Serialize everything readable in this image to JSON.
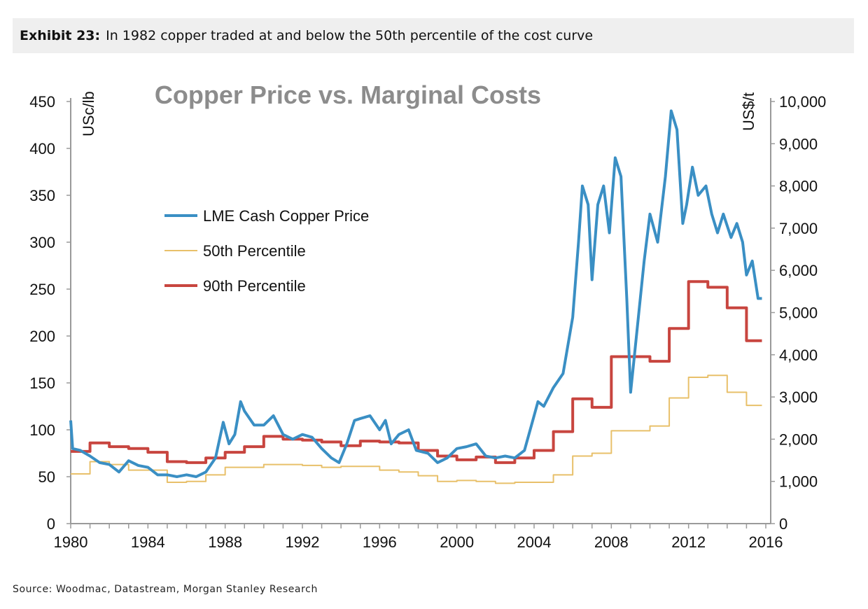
{
  "header": {
    "exhibit_label": "Exhibit 23:",
    "exhibit_title": "In 1982 copper traded at and below the 50th percentile of the cost curve"
  },
  "source": "Source: Woodmac, Datastream, Morgan Stanley Research",
  "chart_data": {
    "type": "line",
    "title": "Copper Price vs. Marginal Costs",
    "ylabel": "USc/lb",
    "y2label": "US$/t",
    "xlim": [
      1980,
      2016
    ],
    "ylim": [
      0,
      450
    ],
    "y2lim": [
      0,
      10000
    ],
    "x_ticks": [
      "1980",
      "1984",
      "1988",
      "1992",
      "1996",
      "2000",
      "2004",
      "2008",
      "2012",
      "2016"
    ],
    "y_ticks": [
      "0",
      "50",
      "100",
      "150",
      "200",
      "250",
      "300",
      "350",
      "400",
      "450"
    ],
    "y2_ticks": [
      "0",
      "1,000",
      "2,000",
      "3,000",
      "4,000",
      "5,000",
      "6,000",
      "7,000",
      "8,000",
      "9,000",
      "10,000"
    ],
    "legend_position": "upper-left",
    "series": [
      {
        "name": "LME Cash Copper Price",
        "color": "#3a8fc4",
        "step": false,
        "x": [
          1980.0,
          1980.1,
          1980.5,
          1981,
          1981.5,
          1982,
          1982.5,
          1983,
          1983.5,
          1984,
          1984.5,
          1985,
          1985.5,
          1986,
          1986.5,
          1987,
          1987.5,
          1987.9,
          1988.2,
          1988.5,
          1988.8,
          1989,
          1989.5,
          1990,
          1990.5,
          1991,
          1991.5,
          1992,
          1992.5,
          1993,
          1993.5,
          1993.9,
          1994.3,
          1994.7,
          1995,
          1995.5,
          1996,
          1996.3,
          1996.6,
          1997,
          1997.5,
          1997.9,
          1998.5,
          1999,
          1999.5,
          2000,
          2000.5,
          2001,
          2001.5,
          2002,
          2002.5,
          2003,
          2003.5,
          2004,
          2004.2,
          2004.5,
          2005,
          2005.5,
          2006,
          2006.3,
          2006.5,
          2006.8,
          2007,
          2007.3,
          2007.6,
          2007.9,
          2008.2,
          2008.5,
          2008.8,
          2009,
          2009.4,
          2009.7,
          2010,
          2010.4,
          2010.8,
          2011.1,
          2011.4,
          2011.7,
          2011.9,
          2012.2,
          2012.5,
          2012.9,
          2013.2,
          2013.5,
          2013.8,
          2014.2,
          2014.5,
          2014.8,
          2015,
          2015.3,
          2015.6,
          2015.8
        ],
        "values": [
          110,
          80,
          78,
          72,
          65,
          63,
          55,
          67,
          62,
          60,
          52,
          52,
          50,
          52,
          50,
          55,
          70,
          108,
          85,
          95,
          130,
          120,
          105,
          105,
          115,
          95,
          90,
          95,
          92,
          80,
          70,
          65,
          85,
          110,
          112,
          115,
          100,
          110,
          85,
          95,
          100,
          78,
          75,
          65,
          70,
          80,
          82,
          85,
          72,
          70,
          72,
          70,
          78,
          115,
          130,
          125,
          145,
          160,
          220,
          300,
          360,
          340,
          260,
          340,
          360,
          310,
          390,
          370,
          240,
          140,
          220,
          280,
          330,
          300,
          370,
          440,
          420,
          320,
          340,
          380,
          350,
          360,
          330,
          310,
          330,
          305,
          320,
          300,
          265,
          280,
          240,
          240
        ]
      },
      {
        "name": "50th Percentile",
        "color": "#e8c06a",
        "step": true,
        "x": [
          1980,
          1981,
          1982,
          1983,
          1984,
          1985,
          1986,
          1987,
          1988,
          1989,
          1990,
          1991,
          1992,
          1993,
          1994,
          1995,
          1996,
          1997,
          1998,
          1999,
          2000,
          2001,
          2002,
          2003,
          2004,
          2005,
          2006,
          2007,
          2008,
          2010,
          2011,
          2012,
          2013,
          2014,
          2015,
          2015.8
        ],
        "values": [
          53,
          66,
          63,
          57,
          57,
          44,
          45,
          52,
          60,
          60,
          63,
          63,
          62,
          60,
          61,
          61,
          57,
          55,
          51,
          45,
          46,
          45,
          43,
          44,
          44,
          52,
          72,
          75,
          99,
          104,
          134,
          156,
          158,
          140,
          126,
          126
        ]
      },
      {
        "name": "90th Percentile",
        "color": "#c8453f",
        "step": true,
        "x": [
          1980,
          1981,
          1982,
          1983,
          1984,
          1985,
          1986,
          1987,
          1988,
          1989,
          1990,
          1991,
          1992,
          1993,
          1994,
          1995,
          1996,
          1997,
          1998,
          1999,
          2000,
          2001,
          2002,
          2003,
          2004,
          2005,
          2006,
          2007,
          2008,
          2010,
          2011,
          2012,
          2013,
          2014,
          2015,
          2015.8
        ],
        "values": [
          77,
          86,
          82,
          80,
          76,
          66,
          65,
          70,
          76,
          82,
          93,
          90,
          89,
          87,
          83,
          88,
          87,
          86,
          78,
          72,
          68,
          71,
          65,
          70,
          78,
          98,
          133,
          124,
          178,
          173,
          208,
          258,
          252,
          230,
          195,
          195
        ]
      }
    ]
  }
}
